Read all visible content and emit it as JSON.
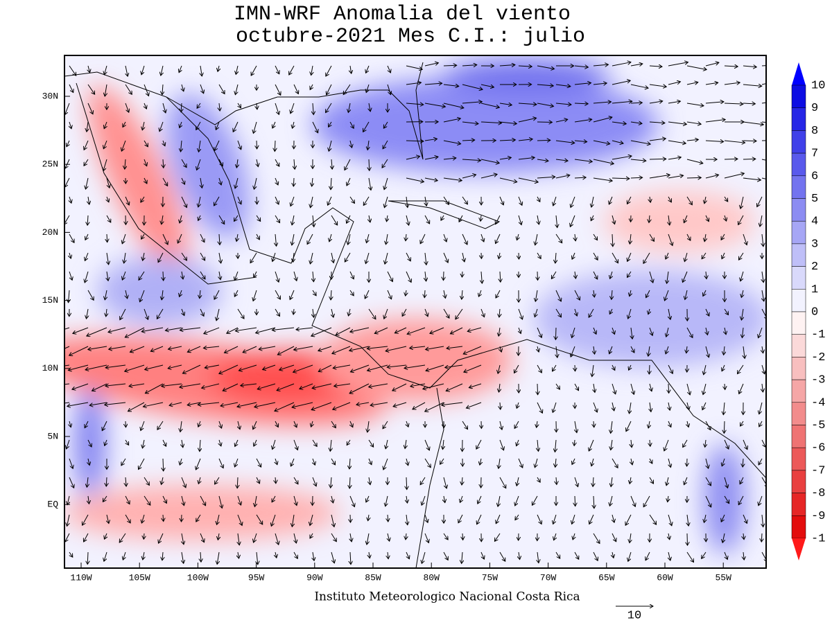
{
  "title": [
    "IMN-WRF Anomalia del viento",
    "octubre-2021 Mes C.I.: julio"
  ],
  "lon_labels": [
    "110W",
    "105W",
    "100W",
    "95W",
    "90W",
    "85W",
    "80W",
    "75W",
    "70W",
    "65W",
    "60W",
    "55W"
  ],
  "lat_labels": [
    "30N",
    "25N",
    "20N",
    "15N",
    "10N",
    "5N",
    "EQ"
  ],
  "colorbar_labels": [
    "10",
    "9",
    "8",
    "7",
    "6",
    "5",
    "4",
    "3",
    "2",
    "1",
    "0",
    "-1",
    "-2",
    "-3",
    "-4",
    "-5",
    "-6",
    "-7",
    "-8",
    "-9",
    "-1"
  ],
  "credit": "Instituto Meteorologico Nacional Costa Rica",
  "reference_vector": "10"
}
